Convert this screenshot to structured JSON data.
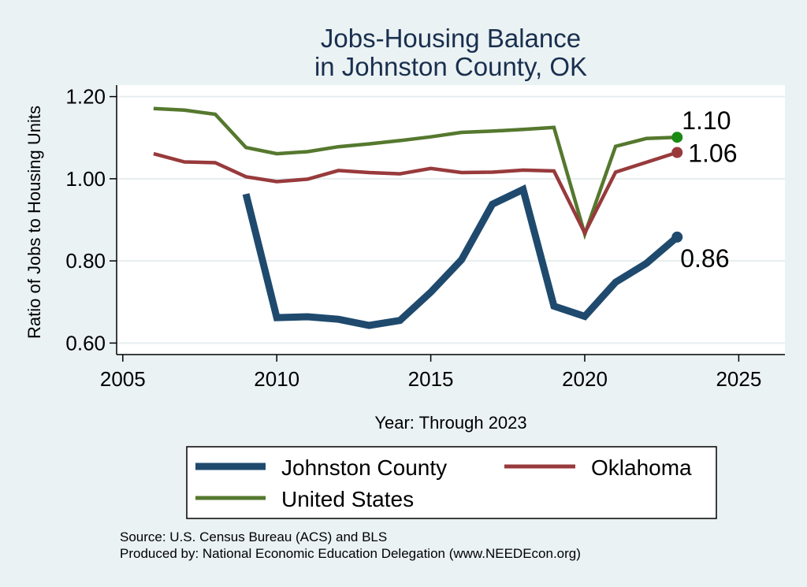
{
  "chart_data": {
    "type": "line",
    "title_line1": "Jobs-Housing Balance",
    "title_line2": "in Johnston County, OK",
    "xlabel": "Year: Through 2023",
    "ylabel": "Ratio of Jobs to Housing Units",
    "xlim": [
      2004.8,
      2026.5
    ],
    "ylim": [
      0.572,
      1.228
    ],
    "x_ticks": [
      2005,
      2010,
      2015,
      2020,
      2025
    ],
    "y_ticks": [
      0.6,
      0.8,
      1.0,
      1.2
    ],
    "y_tick_labels": [
      "0.60",
      "0.80",
      "1.00",
      "1.20"
    ],
    "series": [
      {
        "name": "United States",
        "color": "#55782e",
        "dot_color": "#1a8a14",
        "end_label": "1.10",
        "x": [
          2006,
          2007,
          2008,
          2009,
          2010,
          2011,
          2012,
          2013,
          2014,
          2015,
          2016,
          2017,
          2018,
          2019,
          2020,
          2021,
          2022,
          2023
        ],
        "values": [
          1.171,
          1.167,
          1.157,
          1.076,
          1.061,
          1.066,
          1.078,
          1.085,
          1.093,
          1.102,
          1.113,
          1.116,
          1.12,
          1.125,
          0.865,
          1.079,
          1.098,
          1.101
        ]
      },
      {
        "name": "Oklahoma",
        "color": "#983a3c",
        "dot_color": "#983a3c",
        "end_label": "1.06",
        "x": [
          2006,
          2007,
          2008,
          2009,
          2010,
          2011,
          2012,
          2013,
          2014,
          2015,
          2016,
          2017,
          2018,
          2019,
          2020,
          2021,
          2022,
          2023
        ],
        "values": [
          1.061,
          1.041,
          1.039,
          1.005,
          0.993,
          0.999,
          1.02,
          1.015,
          1.012,
          1.025,
          1.015,
          1.016,
          1.021,
          1.019,
          0.868,
          1.016,
          1.04,
          1.064
        ]
      },
      {
        "name": "Johnston County",
        "color": "#1f4a6e",
        "dot_color": "#1f4a6e",
        "end_label": "0.86",
        "x": [
          2009,
          2010,
          2011,
          2012,
          2013,
          2014,
          2015,
          2016,
          2017,
          2018,
          2019,
          2020,
          2021,
          2022,
          2023
        ],
        "values": [
          0.963,
          0.662,
          0.664,
          0.658,
          0.643,
          0.655,
          0.724,
          0.803,
          0.938,
          0.974,
          0.69,
          0.665,
          0.748,
          0.794,
          0.858
        ]
      }
    ],
    "legend": {
      "position": "bottom",
      "entries": [
        "Johnston County",
        "Oklahoma",
        "United States"
      ]
    },
    "grid": "horizontal"
  },
  "source": {
    "line1": "Source: U.S. Census Bureau (ACS) and BLS",
    "line2": "Produced by: National Economic Education Delegation (www.NEEDEcon.org)"
  }
}
